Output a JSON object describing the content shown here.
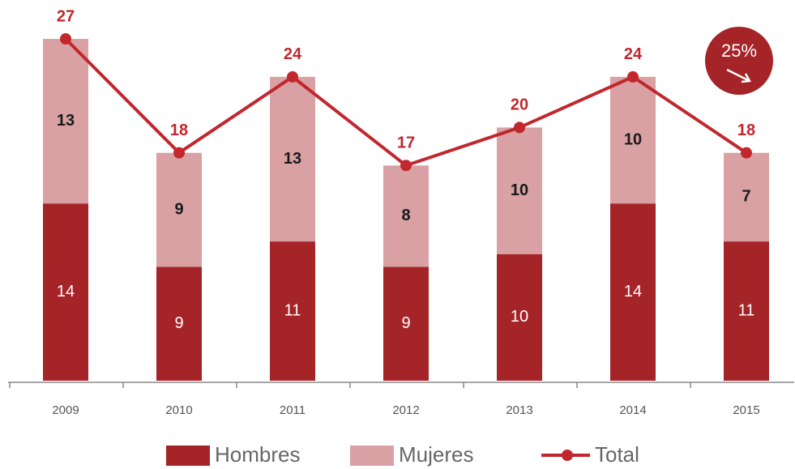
{
  "chart_data": {
    "type": "bar",
    "stacked": true,
    "categories": [
      "2009",
      "2010",
      "2011",
      "2012",
      "2013",
      "2014",
      "2015"
    ],
    "series": [
      {
        "name": "Hombres",
        "type": "bar",
        "color": "#a52428",
        "label_color": "#ffffff",
        "values": [
          14,
          9,
          11,
          9,
          10,
          14,
          11
        ]
      },
      {
        "name": "Mujeres",
        "type": "bar",
        "color": "#d9a1a3",
        "label_color": "#1a1a1a",
        "values": [
          13,
          9,
          13,
          8,
          10,
          10,
          7
        ]
      },
      {
        "name": "Total",
        "type": "line",
        "color": "#c1272d",
        "label_color": "#c1272d",
        "values": [
          27,
          18,
          24,
          17,
          20,
          24,
          18
        ]
      }
    ],
    "ylim": [
      0,
      27
    ],
    "annotation": "25%",
    "legend": "bottom"
  }
}
